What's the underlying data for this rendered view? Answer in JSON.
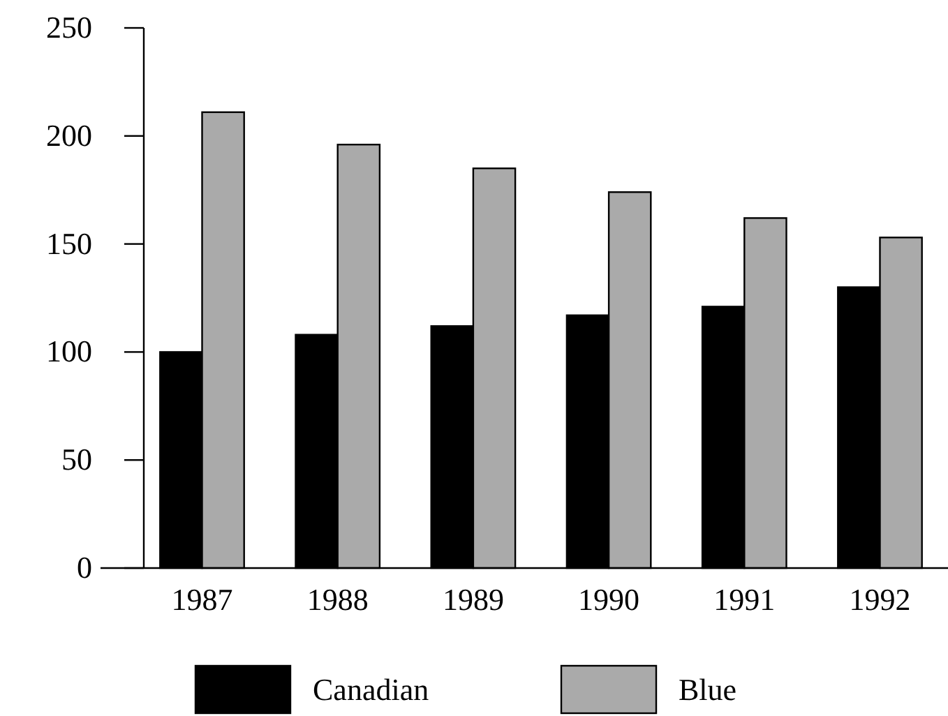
{
  "chart_data": {
    "type": "bar",
    "categories": [
      "1987",
      "1988",
      "1989",
      "1990",
      "1991",
      "1992"
    ],
    "series": [
      {
        "name": "Canadian",
        "color": "#000000",
        "values": [
          100,
          108,
          112,
          117,
          121,
          130
        ]
      },
      {
        "name": "Blue",
        "color": "#aaaaaa",
        "values": [
          211,
          196,
          185,
          174,
          162,
          153
        ]
      }
    ],
    "ylim": [
      0,
      250
    ],
    "yticks": [
      0,
      50,
      100,
      150,
      200,
      250
    ],
    "grid": false,
    "legend": "bottom"
  }
}
